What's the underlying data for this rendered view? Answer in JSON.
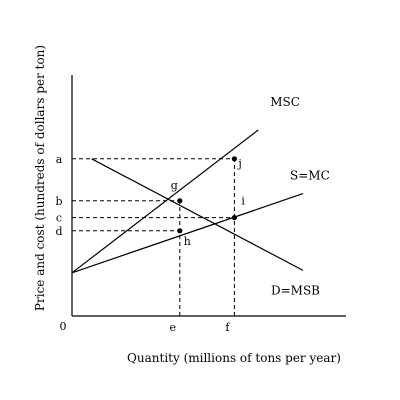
{
  "chart_data": {
    "type": "line",
    "title": "",
    "xlabel": "Quantity (millions of tons per year)",
    "ylabel": "Price and cost (hundreds of dollars per ton)",
    "origin_label": "0",
    "xlim": [
      0,
      10
    ],
    "ylim": [
      0,
      10
    ],
    "grid": false,
    "legend": "none",
    "x_ticks": [
      {
        "label": "e",
        "value": 3.85
      },
      {
        "label": "f",
        "value": 5.8
      }
    ],
    "y_ticks": [
      {
        "label": "a",
        "value": 6.55
      },
      {
        "label": "b",
        "value": 4.8
      },
      {
        "label": "c",
        "value": 4.1
      },
      {
        "label": "d",
        "value": 3.55
      }
    ],
    "series": [
      {
        "name": "MSC",
        "x": [
          0,
          6.65
        ],
        "y": [
          1.8,
          7.75
        ]
      },
      {
        "name": "S=MC",
        "x": [
          0,
          8.25
        ],
        "y": [
          1.8,
          5.1
        ]
      },
      {
        "name": "D=MSB",
        "x": [
          0.7,
          8.25
        ],
        "y": [
          6.55,
          1.9
        ]
      }
    ],
    "points": [
      {
        "label": "j",
        "x": 5.8,
        "y": 6.55
      },
      {
        "label": "g",
        "x": 3.85,
        "y": 4.8
      },
      {
        "label": "i",
        "x": 5.8,
        "y": 4.1
      },
      {
        "label": "h",
        "x": 3.85,
        "y": 3.55
      }
    ],
    "guides": [
      {
        "from": "a",
        "to": "j"
      },
      {
        "from": "b",
        "to": "g"
      },
      {
        "from": "c",
        "to": "i"
      },
      {
        "from": "d",
        "to": "h"
      },
      {
        "from": "e",
        "to": "g"
      },
      {
        "from": "f",
        "to": "j"
      }
    ]
  }
}
